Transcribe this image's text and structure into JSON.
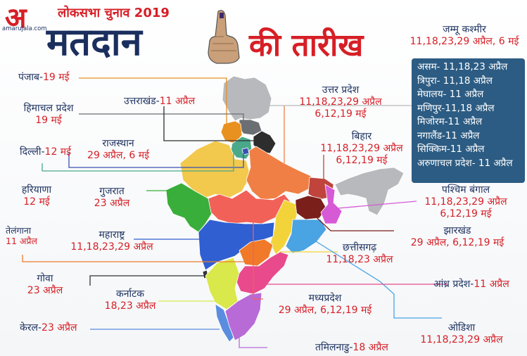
{
  "brand": {
    "logo_letter": "अ",
    "site": "amarujala.com"
  },
  "header": {
    "subtitle": "लोकसभा चुनाव 2019",
    "title_main": "मतदान",
    "title_rest": "की तारीख"
  },
  "states": {
    "punjab": {
      "name": "पंजाब-",
      "dates": "19 मई"
    },
    "himachal": {
      "name": "हिमाचल प्रदेश",
      "dates": "19 मई"
    },
    "uttarakhand": {
      "name": "उत्तराखंड-",
      "dates": "11 अप्रैल"
    },
    "delhi": {
      "name": "दिल्ली-",
      "dates": "12 मई"
    },
    "rajasthan": {
      "name": "राजस्थान",
      "dates": "29 अप्रैल, 6 मई"
    },
    "haryana": {
      "name": "हरियाणा",
      "dates": "12 मई"
    },
    "gujarat": {
      "name": "गुजरात",
      "dates": "23 अप्रैल"
    },
    "telangana": {
      "name": "तेलंगाना",
      "dates": "11 अप्रैल"
    },
    "maharashtra": {
      "name": "महाराष्ट्र",
      "dates": "11,18,23,29 अप्रैल"
    },
    "goa": {
      "name": "गोवा",
      "dates": "23 अप्रैल"
    },
    "karnataka": {
      "name": "कर्नाटक",
      "dates": "18,23 अप्रैल"
    },
    "kerala": {
      "name": "केरल-",
      "dates": "23 अप्रैल"
    },
    "tamilnadu": {
      "name": "तमिलनाडु-",
      "dates": "18 अप्रैल"
    },
    "mp": {
      "name": "मध्यप्रदेश",
      "dates": "29 अप्रैल, 6,12,19 मई"
    },
    "chhattisgarh": {
      "name": "छत्तीसगढ़",
      "dates": "11,18,23 अप्रैल"
    },
    "odisha": {
      "name": "ओडिशा",
      "dates": "11,18,23,29 अप्रैल"
    },
    "andhra": {
      "name": "आंध्र प्रदेश-",
      "dates": "11 अप्रैल"
    },
    "jharkhand": {
      "name": "झारखंड",
      "dates": "29 अप्रैल, 6,12,19 मई"
    },
    "westbengal": {
      "name": "पश्चिम बंगाल",
      "dates": "11,18,23,29 अप्रैल",
      "dates2": "6,12,19 मई"
    },
    "bihar": {
      "name": "बिहार",
      "dates": "11,18,23,29 अप्रैल",
      "dates2": "6,12,19 मई"
    },
    "up": {
      "name": "उत्तर प्रदेश",
      "dates": "11,18,23,29 अप्रैल",
      "dates2": "6,12,19 मई"
    },
    "jk": {
      "name": "जम्मू कश्मीर",
      "dates": "11,18,23,29 अप्रैल, 6 मई"
    }
  },
  "northeast": [
    "असम- 11,18,23 अप्रैल",
    "त्रिपुरा- 11,18 अप्रैल",
    "मेघालय- 11 अप्रैल",
    "मणिपुर-11,18 अप्रैल",
    "मिजोरम-11 अप्रैल",
    "नगालैंड-11 अप्रैल",
    "सिक्किम-11 अप्रैल",
    "अरुणाचल प्रदेश- 11 अप्रैल"
  ],
  "colors": {
    "navy": "#1b2f5e",
    "red": "#d61f26",
    "box": "#2c5c83",
    "jk": "#b7b9bc",
    "himachal": "#6b6e72",
    "punjab": "#e89120",
    "haryana": "#4aa98a",
    "delhi": "#3a4fb3",
    "uttarakhand": "#2d2d2d",
    "rajasthan": "#f2c94c",
    "up": "#f07f45",
    "gujarat": "#3aae3a",
    "mp": "#f26158",
    "bihar": "#c0443c",
    "jharkhand": "#7a1f1a",
    "westbengal": "#d65ad6",
    "ne": "#b7b9bc",
    "chhattisgarh": "#f2d43a",
    "odisha": "#4aa3e2",
    "maharashtra": "#2f5fd1",
    "telangana": "#f07a2a",
    "andhra": "#e84a8c",
    "karnataka": "#d9e84a",
    "goa": "#333333",
    "kerala": "#5a8de0",
    "tamilnadu": "#b86ad6"
  }
}
